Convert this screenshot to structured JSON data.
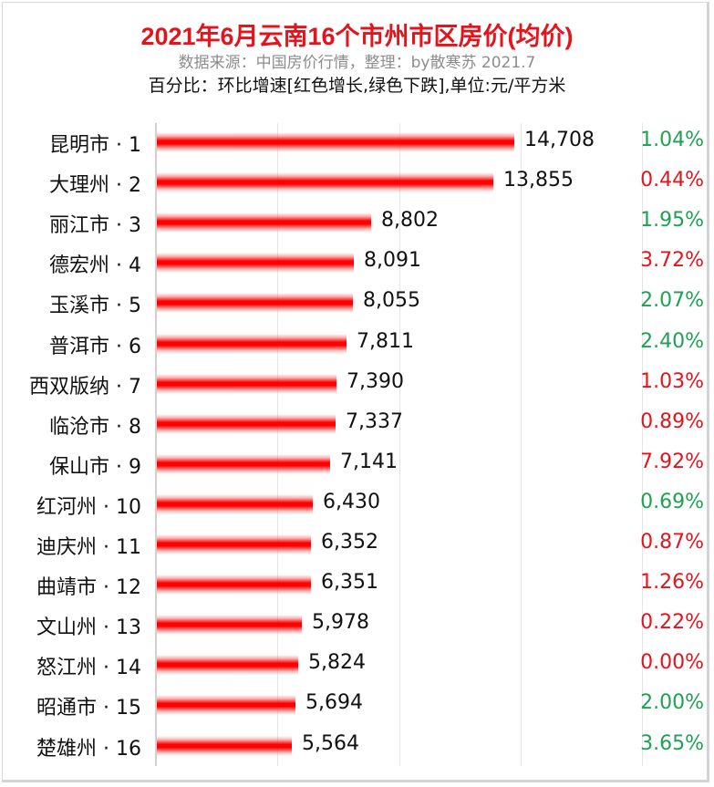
{
  "header": {
    "title": "2021年6月云南16个市州市区房价(均价)",
    "subtitle": "数据来源：中国房价行情，整理：by散寒苏  2021.7",
    "note": "百分比：环比增速[红色增长,绿色下跌],单位:元/平方米"
  },
  "colors": {
    "title": "#e3141b",
    "bar": "#ff0000",
    "increase": "#e3141b",
    "decrease": "#1ea152",
    "gridline": "#e6e6e6"
  },
  "chart_data": {
    "type": "bar",
    "orientation": "horizontal",
    "title": "2021年6月云南16个市州市区房价(均价)",
    "subtitle": "数据来源：中国房价行情，整理：by散寒苏  2021.7",
    "xlabel": "",
    "ylabel": "",
    "unit": "元/平方米",
    "xlim": [
      0,
      20000
    ],
    "gridlines_x": [
      0,
      5000,
      10000,
      15000,
      20000
    ],
    "grid": true,
    "legend": "none",
    "categories": [
      "昆明市 · 1",
      "大理州 · 2",
      "丽江市 · 3",
      "德宏州 · 4",
      "玉溪市 · 5",
      "普洱市 · 6",
      "西双版纳 · 7",
      "临沧市 · 8",
      "保山市 · 9",
      "红河州 · 10",
      "迪庆州 · 11",
      "曲靖市 · 12",
      "文山州 · 13",
      "怒江州 · 14",
      "昭通市 · 15",
      "楚雄州 · 16"
    ],
    "values": [
      14708,
      13855,
      8802,
      8091,
      8055,
      7811,
      7390,
      7337,
      7141,
      6430,
      6352,
      6351,
      5978,
      5824,
      5694,
      5564
    ],
    "series": [
      {
        "name": "均价",
        "values": [
          14708,
          13855,
          8802,
          8091,
          8055,
          7811,
          7390,
          7337,
          7141,
          6430,
          6352,
          6351,
          5978,
          5824,
          5694,
          5564
        ]
      },
      {
        "name": "环比增速",
        "values": [
          "1.04%",
          "0.44%",
          "1.95%",
          "3.72%",
          "2.07%",
          "2.40%",
          "1.03%",
          "0.89%",
          "7.92%",
          "0.69%",
          "0.87%",
          "1.26%",
          "0.22%",
          "0.00%",
          "2.00%",
          "3.65%"
        ],
        "direction": [
          "down",
          "up",
          "down",
          "up",
          "down",
          "down",
          "up",
          "up",
          "up",
          "down",
          "up",
          "up",
          "up",
          "up",
          "down",
          "down"
        ]
      }
    ]
  },
  "rows": [
    {
      "label": "昆明市 · 1",
      "value": 14708,
      "value_text": "14,708",
      "pct": "1.04%",
      "dir": "down"
    },
    {
      "label": "大理州 · 2",
      "value": 13855,
      "value_text": "13,855",
      "pct": "0.44%",
      "dir": "up"
    },
    {
      "label": "丽江市 · 3",
      "value": 8802,
      "value_text": "8,802",
      "pct": "1.95%",
      "dir": "down"
    },
    {
      "label": "德宏州 · 4",
      "value": 8091,
      "value_text": "8,091",
      "pct": "3.72%",
      "dir": "up"
    },
    {
      "label": "玉溪市 · 5",
      "value": 8055,
      "value_text": "8,055",
      "pct": "2.07%",
      "dir": "down"
    },
    {
      "label": "普洱市 · 6",
      "value": 7811,
      "value_text": "7,811",
      "pct": "2.40%",
      "dir": "down"
    },
    {
      "label": "西双版纳 · 7",
      "value": 7390,
      "value_text": "7,390",
      "pct": "1.03%",
      "dir": "up"
    },
    {
      "label": "临沧市 · 8",
      "value": 7337,
      "value_text": "7,337",
      "pct": "0.89%",
      "dir": "up"
    },
    {
      "label": "保山市 · 9",
      "value": 7141,
      "value_text": "7,141",
      "pct": "7.92%",
      "dir": "up"
    },
    {
      "label": "红河州 · 10",
      "value": 6430,
      "value_text": "6,430",
      "pct": "0.69%",
      "dir": "down"
    },
    {
      "label": "迪庆州 · 11",
      "value": 6352,
      "value_text": "6,352",
      "pct": "0.87%",
      "dir": "up"
    },
    {
      "label": "曲靖市 · 12",
      "value": 6351,
      "value_text": "6,351",
      "pct": "1.26%",
      "dir": "up"
    },
    {
      "label": "文山州 · 13",
      "value": 5978,
      "value_text": "5,978",
      "pct": "0.22%",
      "dir": "up"
    },
    {
      "label": "怒江州 · 14",
      "value": 5824,
      "value_text": "5,824",
      "pct": "0.00%",
      "dir": "up"
    },
    {
      "label": "昭通市 · 15",
      "value": 5694,
      "value_text": "5,694",
      "pct": "2.00%",
      "dir": "down"
    },
    {
      "label": "楚雄州 · 16",
      "value": 5564,
      "value_text": "5,564",
      "pct": "3.65%",
      "dir": "down"
    }
  ]
}
